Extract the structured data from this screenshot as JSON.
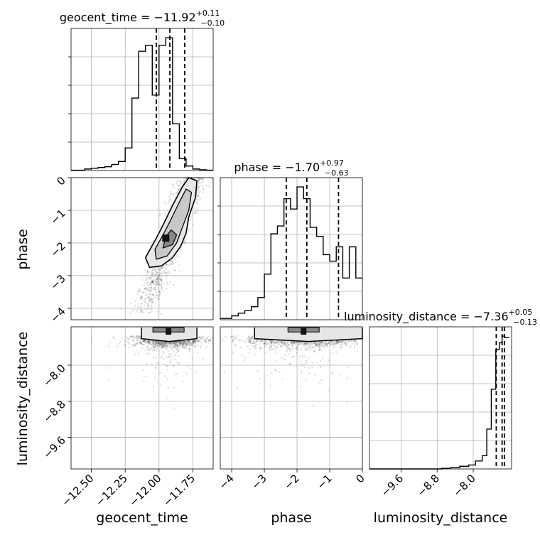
{
  "chart_data": {
    "type": "corner",
    "parameters": [
      "geocent_time",
      "phase",
      "luminosity_distance"
    ],
    "titles": [
      {
        "name": "geocent_time",
        "median": "−11.92",
        "plus": "+0.11",
        "minus": "−0.10"
      },
      {
        "name": "phase",
        "median": "−1.70",
        "plus": "+0.97",
        "minus": "−0.63"
      },
      {
        "name": "luminosity_distance",
        "median": "−7.36",
        "plus": "+0.05",
        "minus": "−0.13"
      }
    ],
    "ranges": {
      "geocent_time": [
        -12.65,
        -11.6
      ],
      "phase": [
        -4.35,
        0.0
      ],
      "luminosity_distance": [
        -10.3,
        -7.15
      ]
    },
    "ticks": {
      "geocent_time": [
        "−12.50",
        "−12.25",
        "−12.00",
        "−11.75"
      ],
      "phase_x": [
        "−4",
        "−3",
        "−2",
        "−1",
        "0"
      ],
      "phase_y": [
        "0",
        "−1",
        "−2",
        "−3",
        "−4"
      ],
      "luminosity_distance": [
        "−9.6",
        "−8.8",
        "−8.0"
      ]
    },
    "quantiles": {
      "geocent_time": [
        -12.02,
        -11.92,
        -11.81
      ],
      "phase": [
        -2.33,
        -1.7,
        -0.73
      ],
      "luminosity_distance": [
        -7.49,
        -7.36,
        -7.31
      ]
    },
    "histograms": {
      "geocent_time": {
        "edges": [
          -12.65,
          -12.55,
          -12.5,
          -12.45,
          -12.4,
          -12.35,
          -12.3,
          -12.25,
          -12.2,
          -12.15,
          -12.1,
          -12.05,
          -12.0,
          -11.95,
          -11.9,
          -11.85,
          -11.8,
          -11.75,
          -11.7,
          -11.65,
          -11.6
        ],
        "counts": [
          0.2,
          1,
          1.5,
          2,
          2.5,
          4,
          6,
          15,
          48,
          79,
          83,
          50,
          83,
          88,
          31,
          8,
          3,
          1,
          0.5,
          0.2
        ]
      },
      "phase": {
        "edges": [
          -4.35,
          -4.0,
          -3.8,
          -3.6,
          -3.4,
          -3.2,
          -3.0,
          -2.8,
          -2.6,
          -2.4,
          -2.2,
          -2.0,
          -1.8,
          -1.6,
          -1.4,
          -1.2,
          -1.0,
          -0.8,
          -0.6,
          -0.4,
          -0.2,
          0.0
        ],
        "counts": [
          1,
          3,
          5,
          7,
          10,
          17,
          35,
          66,
          72,
          93,
          85,
          102,
          93,
          71,
          64,
          50,
          45,
          56,
          32,
          56,
          32
        ]
      },
      "luminosity_distance": {
        "edges": [
          -10.3,
          -8.7,
          -8.5,
          -8.3,
          -8.1,
          -7.95,
          -7.8,
          -7.7,
          -7.6,
          -7.5,
          -7.42,
          -7.36,
          -7.3,
          -7.2
        ],
        "counts": [
          0,
          0.5,
          1,
          2,
          3,
          6,
          10,
          30,
          60,
          90,
          95,
          100,
          99
        ]
      }
    }
  }
}
